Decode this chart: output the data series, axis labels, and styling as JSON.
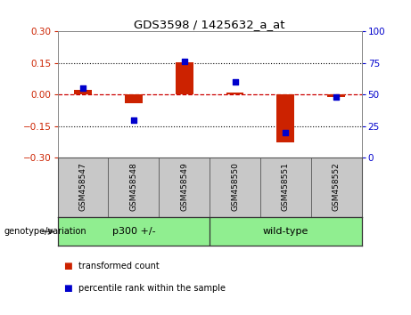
{
  "title": "GDS3598 / 1425632_a_at",
  "samples": [
    "GSM458547",
    "GSM458548",
    "GSM458549",
    "GSM458550",
    "GSM458551",
    "GSM458552"
  ],
  "red_values": [
    0.02,
    -0.04,
    0.155,
    0.01,
    -0.23,
    -0.01
  ],
  "blue_values": [
    55,
    30,
    76,
    60,
    20,
    48
  ],
  "groups": [
    {
      "label": "p300 +/-",
      "start": 0,
      "end": 2
    },
    {
      "label": "wild-type",
      "start": 3,
      "end": 5
    }
  ],
  "ylim_left": [
    -0.3,
    0.3
  ],
  "ylim_right": [
    0,
    100
  ],
  "yticks_left": [
    -0.3,
    -0.15,
    0.0,
    0.15,
    0.3
  ],
  "yticks_right": [
    0,
    25,
    50,
    75,
    100
  ],
  "red_color": "#CC2200",
  "blue_color": "#0000CC",
  "zero_line_color": "#CC0000",
  "grid_color": "#000000",
  "bg_plot": "#FFFFFF",
  "bg_label": "#C8C8C8",
  "bg_group": "#90EE90",
  "bar_width": 0.35,
  "legend_red": "transformed count",
  "legend_blue": "percentile rank within the sample"
}
